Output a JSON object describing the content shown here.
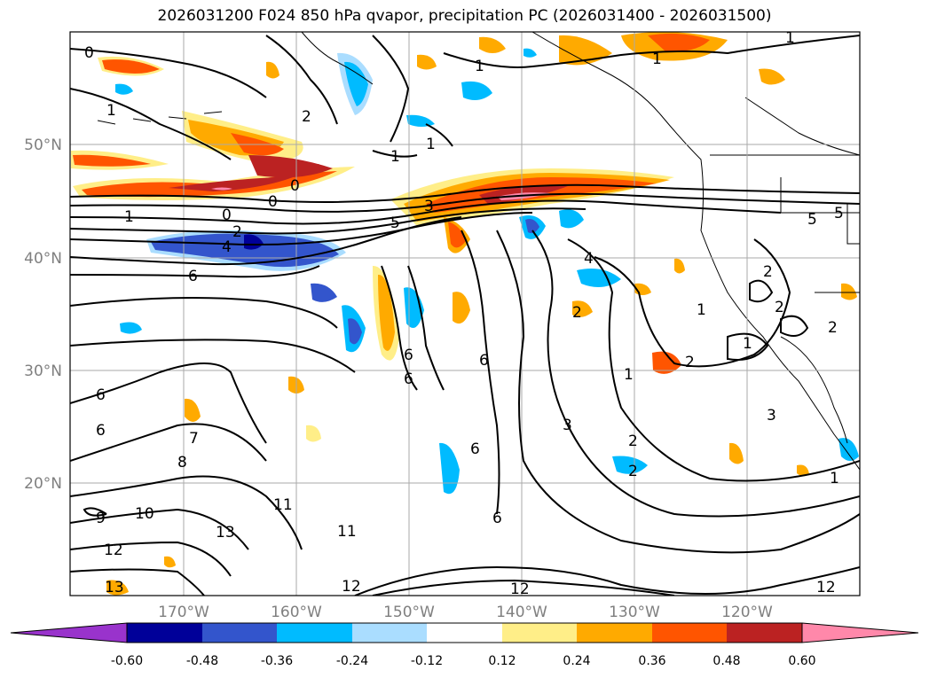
{
  "title": "2026031200 F024 850 hPa qvapor, precipitation PC (2026031400 - 2026031500)",
  "lat_labels": [
    "50°N",
    "40°N",
    "30°N",
    "20°N"
  ],
  "lon_labels": [
    "170°W",
    "160°W",
    "150°W",
    "140°W",
    "130°W",
    "120°W"
  ],
  "colorbar": {
    "ticks": [
      "-0.60",
      "-0.48",
      "-0.36",
      "-0.24",
      "-0.12",
      "0.12",
      "0.24",
      "0.36",
      "0.48",
      "0.60"
    ],
    "colors": [
      "#9933cc",
      "#000099",
      "#3355cc",
      "#00bbff",
      "#aaddff",
      "#ffffff",
      "#ffee88",
      "#ffaa00",
      "#ff5500",
      "#bb2222",
      "#ff88aa"
    ]
  },
  "contour_labels": [
    "0",
    "1",
    "1",
    "1",
    "1",
    "1",
    "2",
    "0",
    "0",
    "0",
    "1",
    "1",
    "2",
    "4",
    "5",
    "3",
    "4",
    "6",
    "6",
    "6",
    "6",
    "7",
    "8",
    "9",
    "10",
    "11",
    "11",
    "13",
    "12",
    "13",
    "12",
    "12",
    "12",
    "6",
    "6",
    "6",
    "6",
    "2",
    "1",
    "2",
    "3",
    "2",
    "2",
    "1",
    "3",
    "1",
    "2",
    "2",
    "5",
    "5",
    "2",
    "1"
  ]
}
